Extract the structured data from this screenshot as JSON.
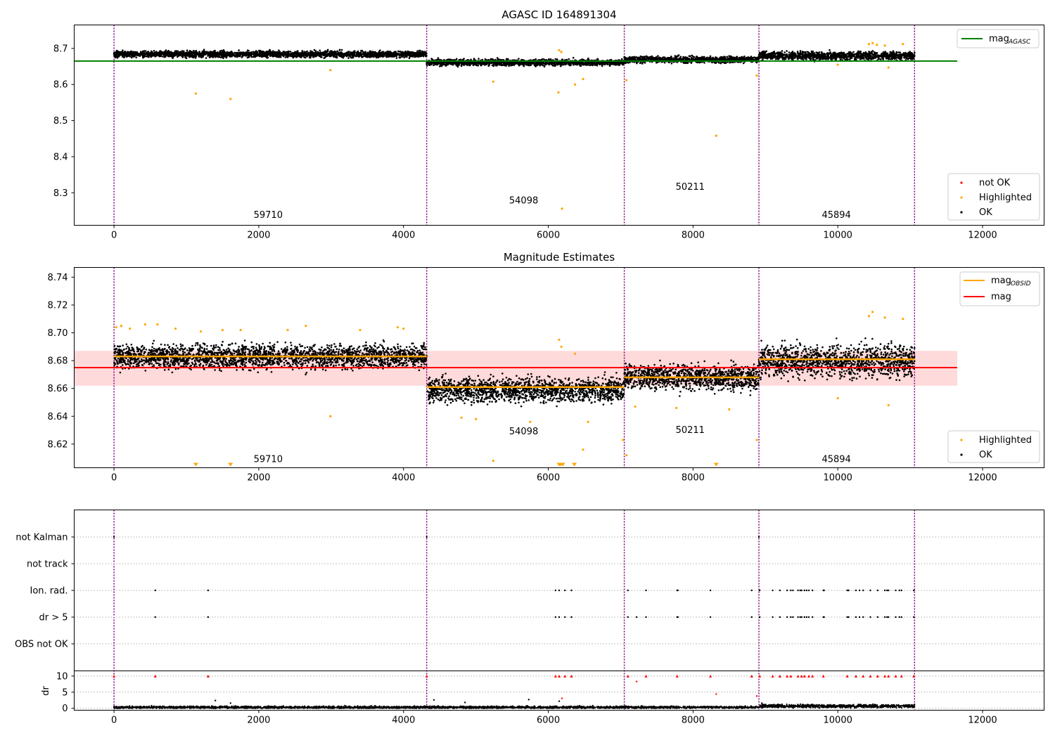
{
  "chart_data": [
    {
      "type": "scatter",
      "title": "AGASC ID 164891304",
      "xlabel": "",
      "ylabel": "",
      "xlim": [
        -550,
        12850
      ],
      "ylim": [
        8.21,
        8.765
      ],
      "xticks": [
        0,
        2000,
        4000,
        6000,
        8000,
        10000,
        12000
      ],
      "xtick_labels": [
        "0",
        "2000",
        "4000",
        "6000",
        "8000",
        "10000",
        "12000"
      ],
      "yticks": [
        8.3,
        8.4,
        8.5,
        8.6,
        8.7
      ],
      "ytick_labels": [
        "8.3",
        "8.4",
        "8.5",
        "8.6",
        "8.7"
      ],
      "vlines": [
        0,
        4320,
        7050,
        8910,
        11060
      ],
      "hline": {
        "label": "mag",
        "label_sub": "AGASC",
        "value": 8.665,
        "x": [
          -550,
          11650
        ],
        "color": "#008000"
      },
      "obsids": [
        {
          "label": "59710",
          "x": 2130,
          "y": 8.23
        },
        {
          "label": "54098",
          "x": 5660,
          "y": 8.27
        },
        {
          "label": "50211",
          "x": 7960,
          "y": 8.308
        },
        {
          "label": "45894",
          "x": 9980,
          "y": 8.23
        }
      ],
      "segments": [
        {
          "x": [
            0,
            4320
          ],
          "mean": 8.684,
          "spread": 0.006
        },
        {
          "x": [
            4320,
            7050
          ],
          "mean": 8.661,
          "spread": 0.006
        },
        {
          "x": [
            7050,
            8910
          ],
          "mean": 8.669,
          "spread": 0.006
        },
        {
          "x": [
            8910,
            11060
          ],
          "mean": 8.68,
          "spread": 0.008
        }
      ],
      "highlighted": [
        {
          "x": 1130,
          "y": 8.575
        },
        {
          "x": 1610,
          "y": 8.56
        },
        {
          "x": 2990,
          "y": 8.64
        },
        {
          "x": 5240,
          "y": 8.608
        },
        {
          "x": 6140,
          "y": 8.578
        },
        {
          "x": 6370,
          "y": 8.6
        },
        {
          "x": 6480,
          "y": 8.615
        },
        {
          "x": 6190,
          "y": 8.256
        },
        {
          "x": 8320,
          "y": 8.458
        },
        {
          "x": 7080,
          "y": 8.612
        },
        {
          "x": 8880,
          "y": 8.625
        },
        {
          "x": 10000,
          "y": 8.655
        },
        {
          "x": 10700,
          "y": 8.647
        },
        {
          "x": 6150,
          "y": 8.695
        },
        {
          "x": 6180,
          "y": 8.69
        },
        {
          "x": 10430,
          "y": 8.712
        },
        {
          "x": 10480,
          "y": 8.715
        },
        {
          "x": 10540,
          "y": 8.71
        },
        {
          "x": 10650,
          "y": 8.708
        },
        {
          "x": 10900,
          "y": 8.712
        }
      ],
      "legend": {
        "position": "lower right",
        "entries": [
          {
            "label": "not OK",
            "color": "#ff0000"
          },
          {
            "label": "Highlighted",
            "color": "#ffa500"
          },
          {
            "label": "OK",
            "color": "#000000"
          }
        ]
      },
      "colors": {
        "ok": "#000000",
        "highlighted": "#ffa500",
        "not_ok": "#ff0000",
        "vline": "#800080"
      }
    },
    {
      "type": "scatter",
      "title": "Magnitude Estimates",
      "xlabel": "",
      "ylabel": "",
      "xlim": [
        -550,
        12850
      ],
      "ylim": [
        8.603,
        8.747
      ],
      "xticks": [
        0,
        2000,
        4000,
        6000,
        8000,
        10000,
        12000
      ],
      "xtick_labels": [
        "0",
        "2000",
        "4000",
        "6000",
        "8000",
        "10000",
        "12000"
      ],
      "yticks": [
        8.62,
        8.64,
        8.66,
        8.68,
        8.7,
        8.72,
        8.74
      ],
      "ytick_labels": [
        "8.62",
        "8.64",
        "8.66",
        "8.68",
        "8.70",
        "8.72",
        "8.74"
      ],
      "vlines": [
        0,
        4320,
        7050,
        8910,
        11060
      ],
      "mag_line": {
        "label": "mag",
        "value": 8.675,
        "band": [
          8.662,
          8.687
        ],
        "x": [
          -550,
          11650
        ],
        "color": "#ff0000"
      },
      "obsid_lines": {
        "label": "mag",
        "label_sub": "OBSID",
        "color": "#ffa500",
        "segments": [
          {
            "x": [
              0,
              4320
            ],
            "value": 8.683
          },
          {
            "x": [
              4320,
              7050
            ],
            "value": 8.661
          },
          {
            "x": [
              7050,
              8910
            ],
            "value": 8.668
          },
          {
            "x": [
              8910,
              11060
            ],
            "value": 8.681
          }
        ]
      },
      "obsids": [
        {
          "label": "59710",
          "x": 2130,
          "y": 8.607
        },
        {
          "label": "54098",
          "x": 5660,
          "y": 8.627
        },
        {
          "label": "50211",
          "x": 7960,
          "y": 8.628
        },
        {
          "label": "45894",
          "x": 9980,
          "y": 8.607
        }
      ],
      "segments": [
        {
          "x": [
            0,
            4320
          ],
          "mean": 8.683,
          "spread": 0.006
        },
        {
          "x": [
            4320,
            7050
          ],
          "mean": 8.659,
          "spread": 0.006
        },
        {
          "x": [
            7050,
            8910
          ],
          "mean": 8.668,
          "spread": 0.006
        },
        {
          "x": [
            8910,
            11060
          ],
          "mean": 8.68,
          "spread": 0.008
        }
      ],
      "highlighted": [
        {
          "x": 30,
          "y": 8.704
        },
        {
          "x": 100,
          "y": 8.705
        },
        {
          "x": 220,
          "y": 8.703
        },
        {
          "x": 430,
          "y": 8.706
        },
        {
          "x": 600,
          "y": 8.706
        },
        {
          "x": 850,
          "y": 8.703
        },
        {
          "x": 1200,
          "y": 8.701
        },
        {
          "x": 1500,
          "y": 8.702
        },
        {
          "x": 1750,
          "y": 8.702
        },
        {
          "x": 2400,
          "y": 8.702
        },
        {
          "x": 2650,
          "y": 8.705
        },
        {
          "x": 3400,
          "y": 8.702
        },
        {
          "x": 3920,
          "y": 8.704
        },
        {
          "x": 4000,
          "y": 8.703
        },
        {
          "x": 2990,
          "y": 8.64
        },
        {
          "x": 5240,
          "y": 8.608
        },
        {
          "x": 4800,
          "y": 8.639
        },
        {
          "x": 5000,
          "y": 8.638
        },
        {
          "x": 5750,
          "y": 8.636
        },
        {
          "x": 6480,
          "y": 8.616
        },
        {
          "x": 6550,
          "y": 8.636
        },
        {
          "x": 6150,
          "y": 8.695
        },
        {
          "x": 6180,
          "y": 8.69
        },
        {
          "x": 6370,
          "y": 8.685
        },
        {
          "x": 7030,
          "y": 8.623
        },
        {
          "x": 7080,
          "y": 8.612
        },
        {
          "x": 7200,
          "y": 8.647
        },
        {
          "x": 7770,
          "y": 8.646
        },
        {
          "x": 8500,
          "y": 8.645
        },
        {
          "x": 8880,
          "y": 8.623
        },
        {
          "x": 10000,
          "y": 8.653
        },
        {
          "x": 10700,
          "y": 8.648
        },
        {
          "x": 10430,
          "y": 8.712
        },
        {
          "x": 10480,
          "y": 8.715
        },
        {
          "x": 10650,
          "y": 8.711
        },
        {
          "x": 10900,
          "y": 8.71
        }
      ],
      "off_scale_markers": [
        1130,
        1610,
        6150,
        6170,
        6200,
        6360,
        8320
      ],
      "legend_top": {
        "position": "upper right",
        "entries": [
          {
            "label": "mag",
            "label_sub": "OBSID",
            "color": "#ffa500"
          },
          {
            "label": "mag",
            "color": "#ff0000"
          }
        ]
      },
      "legend_bottom": {
        "position": "lower right",
        "entries": [
          {
            "label": "Highlighted",
            "color": "#ffa500"
          },
          {
            "label": "OK",
            "color": "#000000"
          }
        ]
      },
      "colors": {
        "ok": "#000000",
        "highlighted": "#ffa500",
        "band": "#ffdada",
        "vline": "#800080"
      }
    },
    {
      "type": "scatter",
      "title": "",
      "xlabel": "",
      "xlim": [
        -550,
        12850
      ],
      "vlines": [
        0,
        4320,
        7050,
        8910,
        11060
      ],
      "flag_rows": [
        "not Kalman",
        "not track",
        "Ion. rad.",
        "dr > 5",
        "OBS not OK"
      ],
      "flag_events": {
        "not Kalman": [
          0,
          4320,
          8910
        ],
        "not track": [],
        "Ion. rad.": [
          570,
          1300,
          6100,
          6150,
          6230,
          6320,
          7100,
          7350,
          7780,
          7790,
          8240,
          8810,
          8920,
          9100,
          9200,
          9300,
          9350,
          9380,
          9450,
          9480,
          9500,
          9540,
          9570,
          9600,
          9650,
          9800,
          9810,
          10130,
          10150,
          10250,
          10300,
          10350,
          10450,
          10550,
          10650,
          10680,
          10700,
          10800,
          10850,
          10880,
          11050
        ],
        "dr > 5": [
          570,
          1300,
          6100,
          6150,
          6230,
          6320,
          7100,
          7220,
          7350,
          7780,
          7790,
          8240,
          8810,
          8920,
          9100,
          9200,
          9300,
          9350,
          9380,
          9450,
          9480,
          9500,
          9540,
          9570,
          9600,
          9650,
          9800,
          9810,
          10130,
          10150,
          10250,
          10300,
          10350,
          10450,
          10550,
          10650,
          10680,
          10700,
          10800,
          10850,
          10880,
          11050
        ],
        "OBS not OK": []
      },
      "dr_panel": {
        "ylabel": "dr",
        "ylim": [
          -0.6,
          11.6
        ],
        "yticks": [
          0,
          5,
          10
        ],
        "ytick_labels": [
          "0",
          "5",
          "10"
        ],
        "dr_max": 10,
        "points_over_limit": [
          0,
          570,
          1300,
          4320,
          6100,
          6150,
          6230,
          6320,
          7100,
          7350,
          7780,
          8240,
          8810,
          8920,
          9100,
          9200,
          9300,
          9350,
          9450,
          9500,
          9540,
          9600,
          9650,
          9800,
          10130,
          10250,
          10350,
          10450,
          10550,
          10650,
          10700,
          10800,
          10880,
          11050
        ],
        "red_extra": [
          {
            "x": 7220,
            "y": 8.3
          },
          {
            "x": 8320,
            "y": 4.4
          },
          {
            "x": 6190,
            "y": 3.1
          },
          {
            "x": 8880,
            "y": 3.8
          }
        ],
        "black_extra": [
          {
            "x": 1400,
            "y": 2.4
          },
          {
            "x": 1610,
            "y": 1.6
          },
          {
            "x": 4420,
            "y": 2.6
          },
          {
            "x": 4850,
            "y": 1.8
          },
          {
            "x": 5730,
            "y": 2.7
          },
          {
            "x": 6150,
            "y": 2.2
          },
          {
            "x": 8950,
            "y": 1.6
          }
        ],
        "base_segments": [
          {
            "x": [
              0,
              8910
            ],
            "mean": 0.3,
            "spread": 0.25
          },
          {
            "x": [
              8910,
              11060
            ],
            "mean": 0.7,
            "spread": 0.35
          }
        ]
      },
      "xticks": [
        0,
        2000,
        4000,
        6000,
        8000,
        10000,
        12000
      ],
      "xtick_labels": [
        "0",
        "2000",
        "4000",
        "6000",
        "8000",
        "10000",
        "12000"
      ],
      "colors": {
        "ok": "#000000",
        "not_ok": "#ff0000",
        "grid": "#b0b0b0",
        "vline": "#800080"
      }
    }
  ]
}
